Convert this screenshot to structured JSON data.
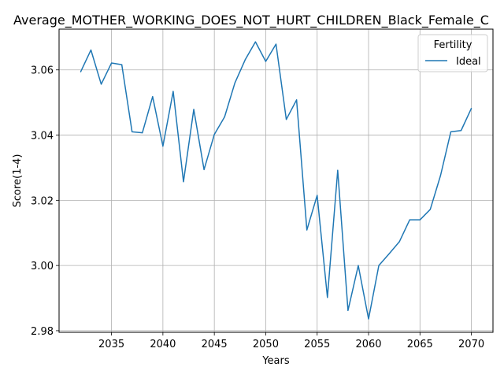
{
  "chart_data": {
    "type": "line",
    "title": "Average_MOTHER_WORKING_DOES_NOT_HURT_CHILDREN_Black_Female_C",
    "xlabel": "Years",
    "ylabel": "Score(1-4)",
    "xlim": [
      2029.9,
      2072.1
    ],
    "ylim": [
      2.9795,
      3.0725
    ],
    "xticks": [
      2035,
      2040,
      2045,
      2050,
      2055,
      2060,
      2065,
      2070
    ],
    "yticks": [
      2.98,
      3.0,
      3.02,
      3.04,
      3.06
    ],
    "ytick_labels": [
      "2.98",
      "3.00",
      "3.02",
      "3.04",
      "3.06"
    ],
    "grid": true,
    "legend": {
      "title": "Fertility",
      "placement": "top-right"
    },
    "series": [
      {
        "name": "Ideal",
        "color": "#1f77b4",
        "x": [
          2032,
          2033,
          2034,
          2035,
          2036,
          2037,
          2038,
          2039,
          2040,
          2041,
          2042,
          2043,
          2044,
          2045,
          2046,
          2047,
          2048,
          2049,
          2050,
          2051,
          2052,
          2053,
          2054,
          2055,
          2056,
          2057,
          2058,
          2059,
          2060,
          2061,
          2062,
          2063,
          2064,
          2065,
          2066,
          2067,
          2068,
          2069,
          2070
        ],
        "values": [
          3.0594,
          3.0661,
          3.0556,
          3.0621,
          3.0616,
          3.041,
          3.0407,
          3.0518,
          3.0366,
          3.0534,
          3.0257,
          3.0479,
          3.0294,
          3.0402,
          3.0456,
          3.056,
          3.0631,
          3.0686,
          3.0626,
          3.0679,
          3.0448,
          3.0508,
          3.0109,
          3.0215,
          2.9902,
          3.0292,
          2.9862,
          3.0,
          2.9836,
          3.0,
          3.0036,
          3.0073,
          3.014,
          3.014,
          3.0172,
          3.0276,
          3.041,
          3.0414,
          3.0482
        ]
      }
    ]
  }
}
